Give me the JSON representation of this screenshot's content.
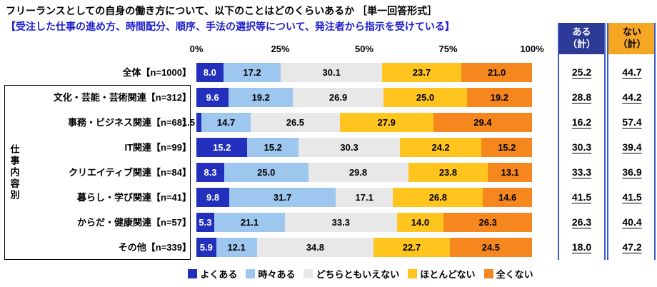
{
  "title": "フリーランスとしての自身の働き方について、以下のことはどのくらいあるか ［単一回答形式］",
  "subtitle": "【受注した仕事の進め方、時間配分、順序、手法の選択等について、発注者から指示を受けている】",
  "group_label": "仕事内容別",
  "summary": {
    "aru_line1": "ある",
    "aru_line2": "（計）",
    "nai_line1": "ない",
    "nai_line2": "（計）",
    "aru_color": "#2d3a96",
    "nai_color": "#f5a623",
    "frame_line_color": "#3a5bc8"
  },
  "chart_data": {
    "type": "bar",
    "stacked": true,
    "orientation": "horizontal",
    "title": "フリーランスとしての自身の働き方について、以下のことはどのくらいあるか ［単一回答形式］",
    "subtitle": "【受注した仕事の進め方、時間配分、順序、手法の選択等について、発注者から指示を受けている】",
    "xlim": [
      0,
      100
    ],
    "axis_ticks": [
      "0%",
      "25%",
      "50%",
      "75%",
      "100%"
    ],
    "legend": [
      "よくある",
      "時々ある",
      "どちらともいえない",
      "ほとんどない",
      "全くない"
    ],
    "series_colors": [
      "#2230bd",
      "#9ec7f0",
      "#e8e8e8",
      "#ffc41e",
      "#f6871f"
    ],
    "summary_columns": [
      "ある（計）",
      "ない（計）"
    ],
    "rows": [
      {
        "label": "全体【n=1000】",
        "values": [
          "8.0",
          "17.2",
          "30.1",
          "23.7",
          "21.0"
        ],
        "aru": "25.2",
        "nai": "44.7"
      },
      {
        "label": "文化・芸能・芸術関連【n=312】",
        "values": [
          "9.6",
          "19.2",
          "26.9",
          "25.0",
          "19.2"
        ],
        "aru": "28.8",
        "nai": "44.2"
      },
      {
        "label": "事務・ビジネス関連【n=68】",
        "values": [
          "1.5",
          "14.7",
          "26.5",
          "27.9",
          "29.4"
        ],
        "aru": "16.2",
        "nai": "57.4"
      },
      {
        "label": "IT関連【n=99】",
        "values": [
          "15.2",
          "15.2",
          "30.3",
          "24.2",
          "15.2"
        ],
        "aru": "30.3",
        "nai": "39.4"
      },
      {
        "label": "クリエイティブ関連【n=84】",
        "values": [
          "8.3",
          "25.0",
          "29.8",
          "23.8",
          "13.1"
        ],
        "aru": "33.3",
        "nai": "36.9"
      },
      {
        "label": "暮らし・学び関連【n=41】",
        "values": [
          "9.8",
          "31.7",
          "17.1",
          "26.8",
          "14.6"
        ],
        "aru": "41.5",
        "nai": "41.5"
      },
      {
        "label": "からだ・健康関連【n=57】",
        "values": [
          "5.3",
          "21.1",
          "33.3",
          "14.0",
          "26.3"
        ],
        "aru": "26.3",
        "nai": "40.4"
      },
      {
        "label": "その他【n=339】",
        "values": [
          "5.9",
          "12.1",
          "34.8",
          "22.7",
          "24.5"
        ],
        "aru": "18.0",
        "nai": "47.2"
      }
    ]
  }
}
